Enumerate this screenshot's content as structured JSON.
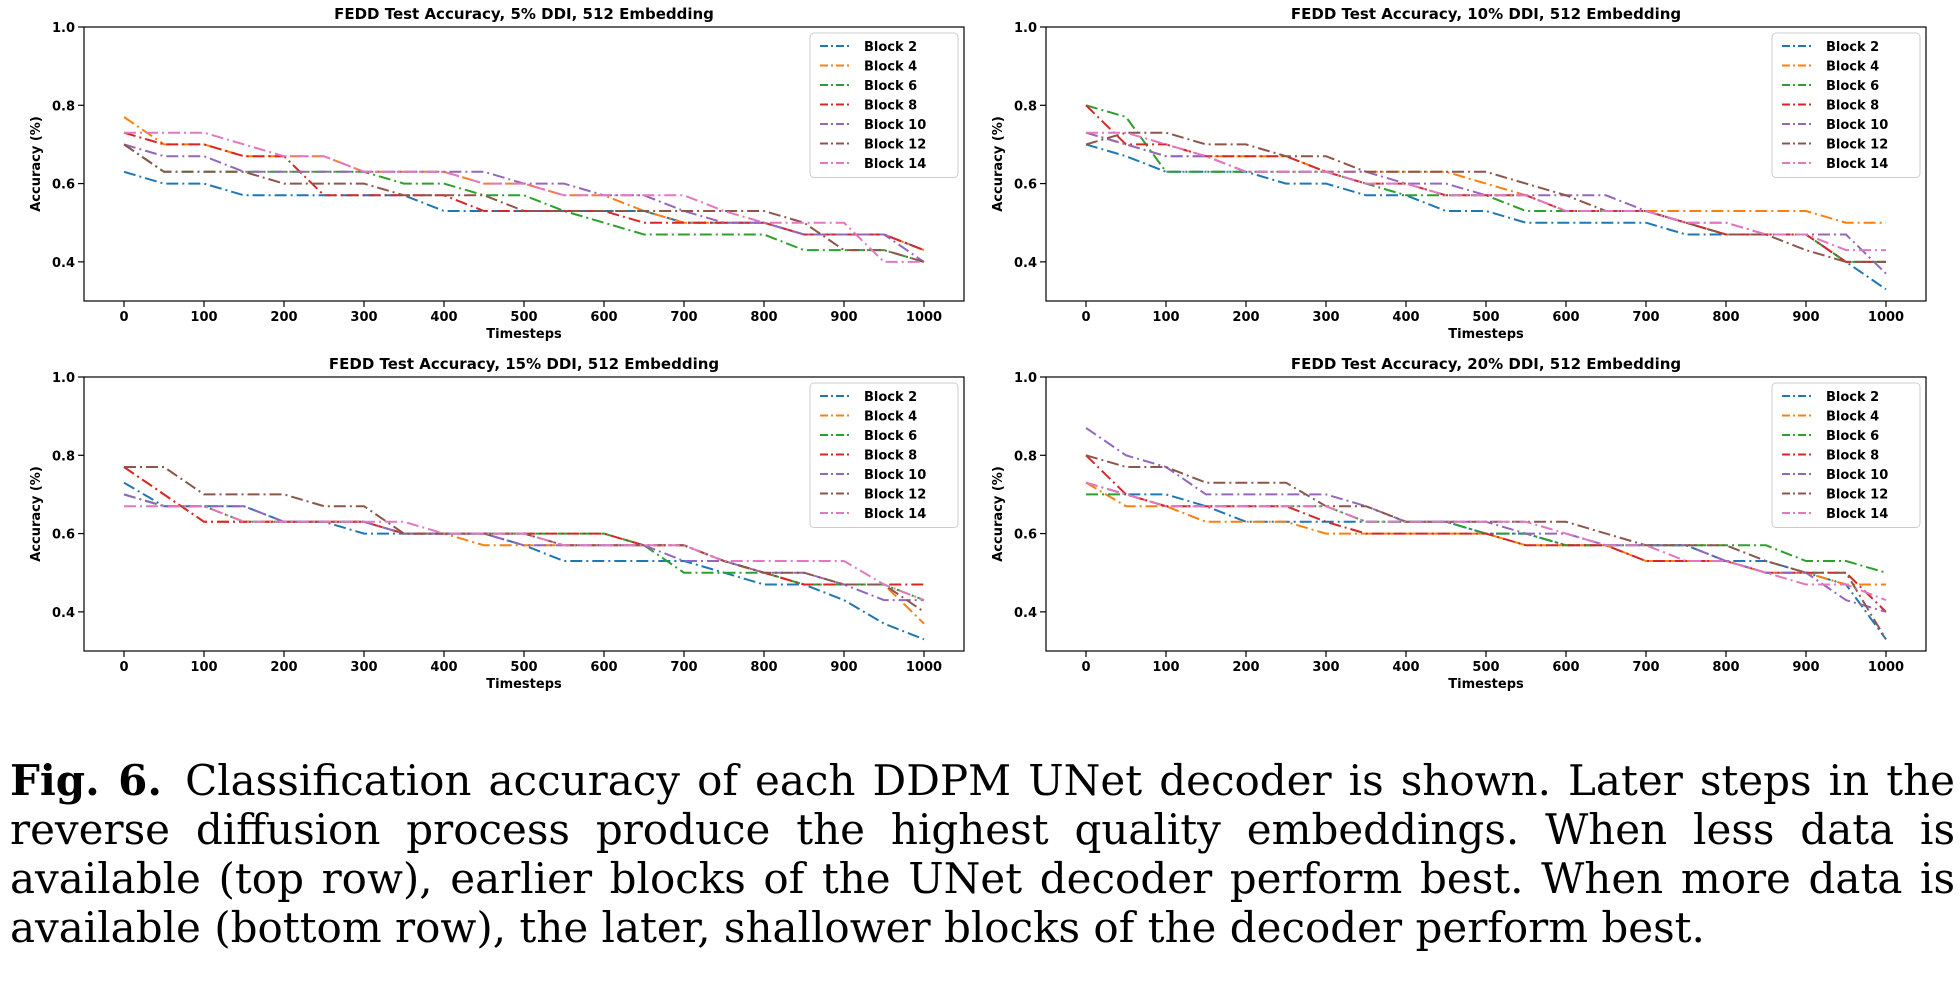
{
  "caption": {
    "label": "Fig. 6.",
    "text": "Classification accuracy of each DDPM UNet decoder is shown. Later steps in the reverse diffusion process produce the highest quality embeddings. When less data is available (top row), earlier blocks of the UNet decoder perform best. When more data is available (bottom row), the later, shallower blocks of the decoder perform best."
  },
  "colors": {
    "Block 2": "#1f77b4",
    "Block 4": "#ff7f0e",
    "Block 6": "#2ca02c",
    "Block 8": "#d62728",
    "Block 10": "#9467bd",
    "Block 12": "#8c564b",
    "Block 14": "#e377c2"
  },
  "chart_data": [
    {
      "type": "line",
      "title": "FEDD Test Accuracy, 5% DDI, 512 Embedding",
      "xlabel": "Timesteps",
      "ylabel": "Accuracy (%)",
      "xlim": [
        -50,
        1050
      ],
      "ylim": [
        0.3,
        1.0
      ],
      "xticks": [
        0,
        100,
        200,
        300,
        400,
        500,
        600,
        700,
        800,
        900,
        1000
      ],
      "yticks": [
        0.4,
        0.6,
        0.8,
        1.0
      ],
      "legend": "top-right",
      "x": [
        0,
        50,
        100,
        150,
        200,
        250,
        300,
        350,
        400,
        450,
        500,
        550,
        600,
        650,
        700,
        750,
        800,
        850,
        900,
        950,
        1000
      ],
      "series": [
        {
          "name": "Block 2",
          "values": [
            0.63,
            0.6,
            0.6,
            0.57,
            0.57,
            0.57,
            0.57,
            0.57,
            0.53,
            0.53,
            0.53,
            0.53,
            0.53,
            0.53,
            0.5,
            0.5,
            0.5,
            0.47,
            0.47,
            0.47,
            0.43
          ]
        },
        {
          "name": "Block 4",
          "values": [
            0.77,
            0.7,
            0.7,
            0.67,
            0.67,
            0.67,
            0.63,
            0.63,
            0.63,
            0.6,
            0.6,
            0.57,
            0.57,
            0.53,
            0.5,
            0.5,
            0.5,
            0.47,
            0.47,
            0.47,
            0.43
          ]
        },
        {
          "name": "Block 6",
          "values": [
            0.7,
            0.63,
            0.63,
            0.63,
            0.63,
            0.63,
            0.63,
            0.6,
            0.6,
            0.57,
            0.57,
            0.53,
            0.5,
            0.47,
            0.47,
            0.47,
            0.47,
            0.43,
            0.43,
            0.43,
            0.4
          ]
        },
        {
          "name": "Block 8",
          "values": [
            0.73,
            0.7,
            0.7,
            0.67,
            0.67,
            0.57,
            0.57,
            0.57,
            0.57,
            0.53,
            0.53,
            0.53,
            0.53,
            0.5,
            0.5,
            0.5,
            0.5,
            0.47,
            0.47,
            0.47,
            0.43
          ]
        },
        {
          "name": "Block 10",
          "values": [
            0.7,
            0.67,
            0.67,
            0.63,
            0.63,
            0.63,
            0.63,
            0.63,
            0.63,
            0.63,
            0.6,
            0.6,
            0.57,
            0.57,
            0.53,
            0.5,
            0.5,
            0.47,
            0.47,
            0.47,
            0.4
          ]
        },
        {
          "name": "Block 12",
          "values": [
            0.7,
            0.63,
            0.63,
            0.63,
            0.6,
            0.6,
            0.6,
            0.57,
            0.57,
            0.57,
            0.53,
            0.53,
            0.53,
            0.53,
            0.53,
            0.53,
            0.53,
            0.5,
            0.43,
            0.43,
            0.4
          ]
        },
        {
          "name": "Block 14",
          "values": [
            0.73,
            0.73,
            0.73,
            0.7,
            0.67,
            0.67,
            0.63,
            0.63,
            0.63,
            0.6,
            0.6,
            0.57,
            0.57,
            0.57,
            0.57,
            0.53,
            0.5,
            0.5,
            0.5,
            0.4,
            0.4
          ]
        }
      ]
    },
    {
      "type": "line",
      "title": "FEDD Test Accuracy, 10% DDI, 512 Embedding",
      "xlabel": "Timesteps",
      "ylabel": "Accuracy (%)",
      "xlim": [
        -50,
        1050
      ],
      "ylim": [
        0.3,
        1.0
      ],
      "xticks": [
        0,
        100,
        200,
        300,
        400,
        500,
        600,
        700,
        800,
        900,
        1000
      ],
      "yticks": [
        0.4,
        0.6,
        0.8,
        1.0
      ],
      "legend": "top-right",
      "x": [
        0,
        50,
        100,
        150,
        200,
        250,
        300,
        350,
        400,
        450,
        500,
        550,
        600,
        650,
        700,
        750,
        800,
        850,
        900,
        950,
        1000
      ],
      "series": [
        {
          "name": "Block 2",
          "values": [
            0.7,
            0.67,
            0.63,
            0.63,
            0.63,
            0.6,
            0.6,
            0.57,
            0.57,
            0.53,
            0.53,
            0.5,
            0.5,
            0.5,
            0.5,
            0.47,
            0.47,
            0.47,
            0.47,
            0.4,
            0.33
          ]
        },
        {
          "name": "Block 4",
          "values": [
            0.73,
            0.7,
            0.67,
            0.67,
            0.67,
            0.67,
            0.63,
            0.63,
            0.63,
            0.63,
            0.6,
            0.57,
            0.53,
            0.53,
            0.53,
            0.53,
            0.53,
            0.53,
            0.53,
            0.5,
            0.5
          ]
        },
        {
          "name": "Block 6",
          "values": [
            0.8,
            0.77,
            0.63,
            0.63,
            0.63,
            0.63,
            0.63,
            0.6,
            0.57,
            0.57,
            0.57,
            0.53,
            0.53,
            0.53,
            0.53,
            0.5,
            0.47,
            0.47,
            0.47,
            0.4,
            0.4
          ]
        },
        {
          "name": "Block 8",
          "values": [
            0.8,
            0.7,
            0.7,
            0.67,
            0.67,
            0.67,
            0.63,
            0.6,
            0.6,
            0.57,
            0.57,
            0.57,
            0.53,
            0.53,
            0.53,
            0.5,
            0.47,
            0.47,
            0.47,
            0.4,
            0.4
          ]
        },
        {
          "name": "Block 10",
          "values": [
            0.73,
            0.7,
            0.67,
            0.67,
            0.63,
            0.63,
            0.63,
            0.63,
            0.6,
            0.6,
            0.57,
            0.57,
            0.57,
            0.57,
            0.53,
            0.5,
            0.5,
            0.47,
            0.47,
            0.47,
            0.37
          ]
        },
        {
          "name": "Block 12",
          "values": [
            0.7,
            0.73,
            0.73,
            0.7,
            0.7,
            0.67,
            0.67,
            0.63,
            0.63,
            0.63,
            0.63,
            0.6,
            0.57,
            0.53,
            0.53,
            0.5,
            0.47,
            0.47,
            0.43,
            0.4,
            0.4
          ]
        },
        {
          "name": "Block 14",
          "values": [
            0.73,
            0.73,
            0.7,
            0.67,
            0.63,
            0.63,
            0.63,
            0.6,
            0.6,
            0.57,
            0.57,
            0.57,
            0.53,
            0.53,
            0.53,
            0.5,
            0.5,
            0.47,
            0.47,
            0.43,
            0.43
          ]
        }
      ]
    },
    {
      "type": "line",
      "title": "FEDD Test Accuracy, 15% DDI, 512 Embedding",
      "xlabel": "Timesteps",
      "ylabel": "Accuracy (%)",
      "xlim": [
        -50,
        1050
      ],
      "ylim": [
        0.3,
        1.0
      ],
      "xticks": [
        0,
        100,
        200,
        300,
        400,
        500,
        600,
        700,
        800,
        900,
        1000
      ],
      "yticks": [
        0.4,
        0.6,
        0.8,
        1.0
      ],
      "legend": "top-right",
      "x": [
        0,
        50,
        100,
        150,
        200,
        250,
        300,
        350,
        400,
        450,
        500,
        550,
        600,
        650,
        700,
        750,
        800,
        850,
        900,
        950,
        1000
      ],
      "series": [
        {
          "name": "Block 2",
          "values": [
            0.73,
            0.67,
            0.67,
            0.67,
            0.63,
            0.63,
            0.6,
            0.6,
            0.6,
            0.6,
            0.57,
            0.53,
            0.53,
            0.53,
            0.53,
            0.5,
            0.47,
            0.47,
            0.43,
            0.37,
            0.33
          ]
        },
        {
          "name": "Block 4",
          "values": [
            0.77,
            0.7,
            0.63,
            0.63,
            0.63,
            0.63,
            0.63,
            0.6,
            0.6,
            0.57,
            0.57,
            0.57,
            0.57,
            0.57,
            0.57,
            0.53,
            0.5,
            0.47,
            0.47,
            0.47,
            0.37
          ]
        },
        {
          "name": "Block 6",
          "values": [
            0.7,
            0.67,
            0.67,
            0.63,
            0.63,
            0.63,
            0.63,
            0.6,
            0.6,
            0.6,
            0.6,
            0.6,
            0.6,
            0.57,
            0.5,
            0.5,
            0.5,
            0.47,
            0.47,
            0.47,
            0.43
          ]
        },
        {
          "name": "Block 8",
          "values": [
            0.77,
            0.7,
            0.63,
            0.63,
            0.63,
            0.63,
            0.63,
            0.6,
            0.6,
            0.6,
            0.6,
            0.6,
            0.6,
            0.57,
            0.57,
            0.53,
            0.5,
            0.47,
            0.47,
            0.47,
            0.47
          ]
        },
        {
          "name": "Block 10",
          "values": [
            0.7,
            0.67,
            0.67,
            0.67,
            0.63,
            0.63,
            0.63,
            0.6,
            0.6,
            0.6,
            0.57,
            0.57,
            0.57,
            0.57,
            0.53,
            0.53,
            0.5,
            0.5,
            0.47,
            0.43,
            0.43
          ]
        },
        {
          "name": "Block 12",
          "values": [
            0.77,
            0.77,
            0.7,
            0.7,
            0.7,
            0.67,
            0.67,
            0.6,
            0.6,
            0.6,
            0.6,
            0.57,
            0.57,
            0.57,
            0.57,
            0.53,
            0.5,
            0.5,
            0.47,
            0.47,
            0.4
          ]
        },
        {
          "name": "Block 14",
          "values": [
            0.67,
            0.67,
            0.67,
            0.63,
            0.63,
            0.63,
            0.63,
            0.63,
            0.6,
            0.6,
            0.6,
            0.57,
            0.57,
            0.57,
            0.57,
            0.53,
            0.53,
            0.53,
            0.53,
            0.47,
            0.43
          ]
        }
      ]
    },
    {
      "type": "line",
      "title": "FEDD Test Accuracy, 20% DDI, 512 Embedding",
      "xlabel": "Timesteps",
      "ylabel": "Accuracy (%)",
      "xlim": [
        -50,
        1050
      ],
      "ylim": [
        0.3,
        1.0
      ],
      "xticks": [
        0,
        100,
        200,
        300,
        400,
        500,
        600,
        700,
        800,
        900,
        1000
      ],
      "yticks": [
        0.4,
        0.6,
        0.8,
        1.0
      ],
      "legend": "top-right",
      "x": [
        0,
        50,
        100,
        150,
        200,
        250,
        300,
        350,
        400,
        450,
        500,
        550,
        600,
        650,
        700,
        750,
        800,
        850,
        900,
        950,
        1000
      ],
      "series": [
        {
          "name": "Block 2",
          "values": [
            0.73,
            0.7,
            0.7,
            0.67,
            0.63,
            0.63,
            0.63,
            0.63,
            0.63,
            0.63,
            0.6,
            0.6,
            0.57,
            0.57,
            0.57,
            0.57,
            0.53,
            0.53,
            0.5,
            0.47,
            0.33
          ]
        },
        {
          "name": "Block 4",
          "values": [
            0.73,
            0.67,
            0.67,
            0.63,
            0.63,
            0.63,
            0.6,
            0.6,
            0.6,
            0.6,
            0.6,
            0.57,
            0.57,
            0.57,
            0.53,
            0.53,
            0.53,
            0.5,
            0.5,
            0.47,
            0.47
          ]
        },
        {
          "name": "Block 6",
          "values": [
            0.7,
            0.7,
            0.67,
            0.67,
            0.67,
            0.67,
            0.67,
            0.63,
            0.63,
            0.63,
            0.6,
            0.6,
            0.57,
            0.57,
            0.57,
            0.57,
            0.57,
            0.57,
            0.53,
            0.53,
            0.5
          ]
        },
        {
          "name": "Block 8",
          "values": [
            0.8,
            0.7,
            0.67,
            0.67,
            0.67,
            0.67,
            0.63,
            0.6,
            0.6,
            0.6,
            0.6,
            0.57,
            0.57,
            0.57,
            0.53,
            0.53,
            0.53,
            0.5,
            0.5,
            0.5,
            0.4
          ]
        },
        {
          "name": "Block 10",
          "values": [
            0.87,
            0.8,
            0.77,
            0.7,
            0.7,
            0.7,
            0.7,
            0.67,
            0.63,
            0.63,
            0.63,
            0.6,
            0.6,
            0.57,
            0.57,
            0.57,
            0.53,
            0.5,
            0.5,
            0.43,
            0.4
          ]
        },
        {
          "name": "Block 12",
          "values": [
            0.8,
            0.77,
            0.77,
            0.73,
            0.73,
            0.73,
            0.67,
            0.67,
            0.63,
            0.63,
            0.63,
            0.63,
            0.63,
            0.6,
            0.57,
            0.57,
            0.57,
            0.53,
            0.5,
            0.5,
            0.33
          ]
        },
        {
          "name": "Block 14",
          "values": [
            0.73,
            0.7,
            0.67,
            0.67,
            0.67,
            0.67,
            0.67,
            0.63,
            0.63,
            0.63,
            0.63,
            0.63,
            0.6,
            0.57,
            0.57,
            0.53,
            0.53,
            0.5,
            0.47,
            0.47,
            0.43
          ]
        }
      ]
    }
  ]
}
